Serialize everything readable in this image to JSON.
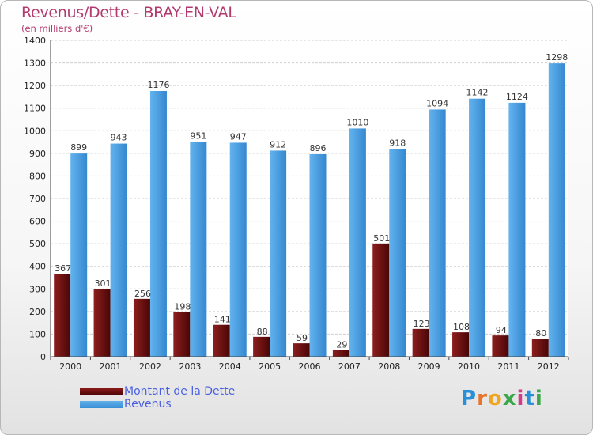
{
  "header": {
    "title": "Revenus/Dette - BRAY-EN-VAL",
    "subtitle": "(en milliers d'€)"
  },
  "legend": {
    "dette_label": "Montant de la Dette",
    "revenus_label": "Revenus"
  },
  "logo": {
    "text": "Proxiti"
  },
  "colors": {
    "dette": "#6b0e0e",
    "revenus": "#4da3e6",
    "title": "#b23a6e",
    "legend_text": "#4a5fe0"
  },
  "chart_data": {
    "type": "bar",
    "title": "Revenus/Dette - BRAY-EN-VAL",
    "subtitle": "(en milliers d'€)",
    "categories": [
      "2000",
      "2001",
      "2002",
      "2003",
      "2004",
      "2005",
      "2006",
      "2007",
      "2008",
      "2009",
      "2010",
      "2011",
      "2012"
    ],
    "series": [
      {
        "name": "Montant de la Dette",
        "values": [
          367,
          301,
          256,
          198,
          141,
          88,
          59,
          29,
          501,
          123,
          108,
          94,
          80
        ]
      },
      {
        "name": "Revenus",
        "values": [
          899,
          943,
          1176,
          951,
          947,
          912,
          896,
          1010,
          918,
          1094,
          1142,
          1124,
          1298
        ]
      }
    ],
    "ylim": [
      0,
      1400
    ],
    "yticks": [
      0,
      100,
      200,
      300,
      400,
      500,
      600,
      700,
      800,
      900,
      1000,
      1100,
      1200,
      1300,
      1400
    ],
    "grid": true,
    "legend_position": "bottom-left"
  }
}
